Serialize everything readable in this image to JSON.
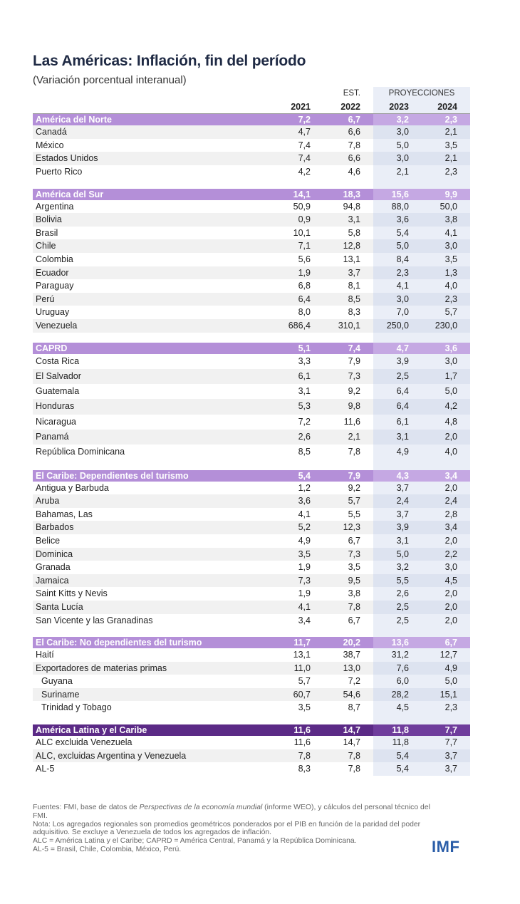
{
  "title": "Las Américas: Inflación, fin del período",
  "subtitle": "(Variación porcentual interanual)",
  "header": {
    "est_label": "EST.",
    "proj_label": "PROYECCIONES",
    "years": [
      "2021",
      "2022",
      "2023",
      "2024"
    ]
  },
  "groups": [
    {
      "name": "América del Norte",
      "values": [
        "7,2",
        "6,7",
        "3,2",
        "2,3"
      ],
      "rows": [
        {
          "name": "Canadá",
          "values": [
            "4,7",
            "6,6",
            "3,0",
            "2,1"
          ]
        },
        {
          "name": "México",
          "values": [
            "7,4",
            "7,8",
            "5,0",
            "3,5"
          ]
        },
        {
          "name": "Estados Unidos",
          "values": [
            "7,4",
            "6,6",
            "3,0",
            "2,1"
          ]
        },
        {
          "name": "Puerto Rico",
          "values": [
            "4,2",
            "4,6",
            "2,1",
            "2,3"
          ]
        }
      ]
    },
    {
      "name": "América del Sur",
      "values": [
        "14,1",
        "18,3",
        "15,6",
        "9,9"
      ],
      "rows": [
        {
          "name": "Argentina",
          "values": [
            "50,9",
            "94,8",
            "88,0",
            "50,0"
          ]
        },
        {
          "name": "Bolivia",
          "values": [
            "0,9",
            "3,1",
            "3,6",
            "3,8"
          ]
        },
        {
          "name": "Brasil",
          "values": [
            "10,1",
            "5,8",
            "5,4",
            "4,1"
          ]
        },
        {
          "name": "Chile",
          "values": [
            "7,1",
            "12,8",
            "5,0",
            "3,0"
          ]
        },
        {
          "name": "Colombia",
          "values": [
            "5,6",
            "13,1",
            "8,4",
            "3,5"
          ]
        },
        {
          "name": "Ecuador",
          "values": [
            "1,9",
            "3,7",
            "2,3",
            "1,3"
          ]
        },
        {
          "name": "Paraguay",
          "values": [
            "6,8",
            "8,1",
            "4,1",
            "4,0"
          ]
        },
        {
          "name": "Perú",
          "values": [
            "6,4",
            "8,5",
            "3,0",
            "2,3"
          ]
        },
        {
          "name": "Uruguay",
          "values": [
            "8,0",
            "8,3",
            "7,0",
            "5,7"
          ]
        },
        {
          "name": "Venezuela",
          "values": [
            "686,4",
            "310,1",
            "250,0",
            "230,0"
          ]
        }
      ]
    },
    {
      "name": "CAPRD",
      "values": [
        "5,1",
        "7,4",
        "4,7",
        "3,6"
      ],
      "rows": [
        {
          "name": "Costa Rica",
          "values": [
            "3,3",
            "7,9",
            "3,9",
            "3,0"
          ]
        },
        {
          "name": "El Salvador",
          "values": [
            "6,1",
            "7,3",
            "2,5",
            "1,7"
          ]
        },
        {
          "name": "Guatemala",
          "values": [
            "3,1",
            "9,2",
            "6,4",
            "5,0"
          ]
        },
        {
          "name": "Honduras",
          "values": [
            "5,3",
            "9,8",
            "6,4",
            "4,2"
          ]
        },
        {
          "name": "Nicaragua",
          "values": [
            "7,2",
            "11,6",
            "6,1",
            "4,8"
          ]
        },
        {
          "name": "Panamá",
          "values": [
            "2,6",
            "2,1",
            "3,1",
            "2,0"
          ]
        },
        {
          "name": "República Dominicana",
          "values": [
            "8,5",
            "7,8",
            "4,9",
            "4,0"
          ]
        }
      ]
    },
    {
      "name": "El Caribe: Dependientes del turismo",
      "values": [
        "5,4",
        "7,9",
        "4,3",
        "3,4"
      ],
      "rows": [
        {
          "name": "Antigua y Barbuda",
          "values": [
            "1,2",
            "9,2",
            "3,7",
            "2,0"
          ]
        },
        {
          "name": "Aruba",
          "values": [
            "3,6",
            "5,7",
            "2,4",
            "2,4"
          ]
        },
        {
          "name": "Bahamas, Las",
          "values": [
            "4,1",
            "5,5",
            "3,7",
            "2,8"
          ]
        },
        {
          "name": "Barbados",
          "values": [
            "5,2",
            "12,3",
            "3,9",
            "3,4"
          ]
        },
        {
          "name": "Belice",
          "values": [
            "4,9",
            "6,7",
            "3,1",
            "2,0"
          ]
        },
        {
          "name": "Dominica",
          "values": [
            "3,5",
            "7,3",
            "5,0",
            "2,2"
          ]
        },
        {
          "name": "Granada",
          "values": [
            "1,9",
            "3,5",
            "3,2",
            "3,0"
          ]
        },
        {
          "name": "Jamaica",
          "values": [
            "7,3",
            "9,5",
            "5,5",
            "4,5"
          ]
        },
        {
          "name": "Saint Kitts y Nevis",
          "values": [
            "1,9",
            "3,8",
            "2,6",
            "2,0"
          ]
        },
        {
          "name": "Santa Lucía",
          "values": [
            "4,1",
            "7,8",
            "2,5",
            "2,0"
          ]
        },
        {
          "name": "San Vicente y las Granadinas",
          "values": [
            "3,4",
            "6,7",
            "2,5",
            "2,0"
          ]
        }
      ]
    },
    {
      "name": "El Caribe: No dependientes del turismo",
      "values": [
        "11,7",
        "20,2",
        "13,6",
        "6,7"
      ],
      "rows": [
        {
          "name": "Haití",
          "values": [
            "13,1",
            "38,7",
            "31,2",
            "12,7"
          ]
        },
        {
          "name": "Exportadores de materias primas",
          "values": [
            "11,0",
            "13,0",
            "7,6",
            "4,9"
          ]
        },
        {
          "name": "Guyana",
          "values": [
            "5,7",
            "7,2",
            "6,0",
            "5,0"
          ],
          "indent": true
        },
        {
          "name": "Suriname",
          "values": [
            "60,7",
            "54,6",
            "28,2",
            "15,1"
          ],
          "indent": true
        },
        {
          "name": "Trinidad y Tobago",
          "values": [
            "3,5",
            "8,7",
            "4,5",
            "2,3"
          ],
          "indent": true
        }
      ]
    },
    {
      "name": "América Latina y el Caribe",
      "values": [
        "11,6",
        "14,7",
        "11,8",
        "7,7"
      ],
      "dark": true,
      "rows": [
        {
          "name": "ALC excluida Venezuela",
          "values": [
            "11,6",
            "14,7",
            "11,8",
            "7,7"
          ]
        },
        {
          "name": "ALC, excluidas Argentina y Venezuela",
          "values": [
            "7,8",
            "7,8",
            "5,4",
            "3,7"
          ]
        },
        {
          "name": "AL-5",
          "values": [
            "8,3",
            "7,8",
            "5,4",
            "3,7"
          ]
        }
      ]
    }
  ],
  "notes": {
    "sources_pre": "Fuentes: FMI, base de datos de ",
    "sources_italic": "Perspectivas de la economía mundial",
    "sources_post": " (informe WEO), y cálculos del personal técnico del FMI.",
    "note1": "Nota: Los agregados regionales son promedios geométricos ponderados por el PIB en función de la paridad del poder adquisitivo. Se excluye a Venezuela de todos los agregados de inflación.",
    "note2": "ALC = América Latina y el Caribe; CAPRD = América Central, Panamá y la República Dominicana.",
    "note3": "AL-5 = Brasil, Chile, Colombia, México, Perú."
  },
  "logo": "IMF",
  "colors": {
    "group_header": "#b48fd8",
    "latam_header": "#5b2a86",
    "projection_shade": "#eaeef7",
    "logo": "#2a5da8"
  }
}
